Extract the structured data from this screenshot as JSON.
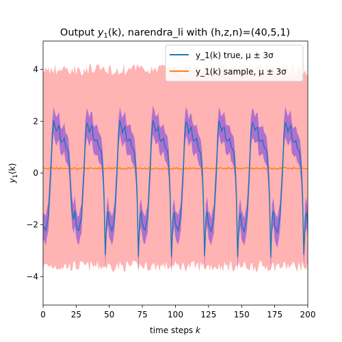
{
  "chart_data": {
    "type": "line",
    "title_prefix": "Output ",
    "title_math": "y",
    "title_sub": "1",
    "title_arg": "(k)",
    "title_suffix": ", narendra_li with (h,z,n)=(40,5,1)",
    "xlabel": "time steps ",
    "xlabel_math": "k",
    "ylabel_math": "y",
    "ylabel_sub": "1",
    "ylabel_arg": "(k)",
    "xlim": [
      0,
      200
    ],
    "ylim": [
      -5.1,
      5.1
    ],
    "xticks": [
      0,
      25,
      50,
      75,
      100,
      125,
      150,
      175,
      200
    ],
    "yticks": [
      -4,
      -2,
      0,
      2,
      4
    ],
    "grid": false,
    "legend_position": "top-right",
    "period": 25,
    "series": [
      {
        "name": "y_1(k) true, μ ± 3σ",
        "color": "#1f77b4",
        "band_color": "#b070d0",
        "profile": [
          [
            0,
            -2.0
          ],
          [
            2,
            -2.25
          ],
          [
            4,
            -1.7
          ],
          [
            6,
            0.2
          ],
          [
            7,
            1.5
          ],
          [
            8,
            2.0
          ],
          [
            9,
            1.8
          ],
          [
            10,
            1.6
          ],
          [
            12,
            1.8
          ],
          [
            13,
            1.3
          ],
          [
            14,
            1.2
          ],
          [
            16,
            1.3
          ],
          [
            17,
            1.0
          ],
          [
            19,
            0.8
          ],
          [
            20,
            0.3
          ],
          [
            21,
            -0.8
          ],
          [
            22,
            -1.6
          ],
          [
            23,
            -1.8
          ],
          [
            24,
            -1.5
          ],
          [
            25,
            -1.0
          ]
        ],
        "band_halfwidth": 0.5
      },
      {
        "name": "y_1(k) sample, μ ± 3σ",
        "color": "#ff7f0e",
        "band_color": "#ffb3b3",
        "mean": 0.18,
        "band_upper": 4.0,
        "band_lower": -3.6
      }
    ]
  }
}
